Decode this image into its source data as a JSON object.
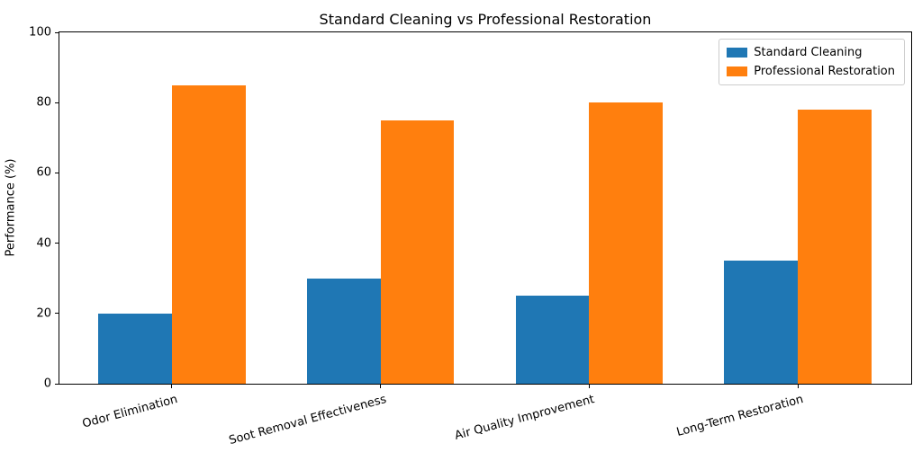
{
  "chart_data": {
    "type": "bar",
    "title": "Standard Cleaning vs Professional Restoration",
    "xlabel": "",
    "ylabel": "Performance (%)",
    "categories": [
      "Odor Elimination",
      "Soot Removal Effectiveness",
      "Air Quality Improvement",
      "Long-Term Restoration"
    ],
    "series": [
      {
        "name": "Standard Cleaning",
        "color": "#1f77b4",
        "values": [
          20,
          30,
          25,
          35
        ]
      },
      {
        "name": "Professional Restoration",
        "color": "#ff7f0e",
        "values": [
          85,
          75,
          80,
          78
        ]
      }
    ],
    "ylim": [
      0,
      100
    ],
    "yticks": [
      0,
      20,
      40,
      60,
      80,
      100
    ],
    "grid": false,
    "legend_position": "upper right",
    "xtick_rotation": 15,
    "frame": "full-box",
    "background_color": "#ffffff",
    "text_color": "#000000"
  }
}
